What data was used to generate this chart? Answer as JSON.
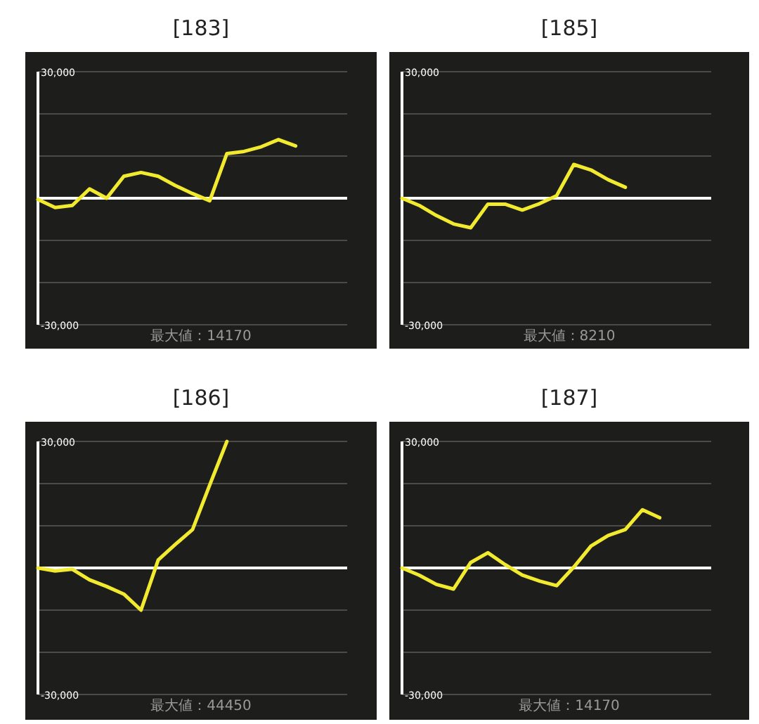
{
  "chart_data": [
    {
      "type": "line",
      "title": "[183]",
      "categories": [
        null,
        null,
        null,
        null,
        null,
        null,
        null,
        null,
        null,
        null,
        null,
        null,
        null,
        null,
        null,
        null,
        null,
        null,
        null
      ],
      "series": [
        {
          "color": "#f2ea2e",
          "values": [
            -300,
            -2200,
            -1700,
            2200,
            0,
            5200,
            6100,
            5200,
            3000,
            1100,
            -600,
            10600,
            11100,
            12200,
            13900,
            12400,
            null,
            null,
            null
          ]
        }
      ],
      "ylim": [
        -30000,
        30000
      ],
      "yticks": [
        {
          "value": -30000,
          "label": "-30,000"
        },
        {
          "value": -20000,
          "label": null
        },
        {
          "value": -10000,
          "label": null
        },
        {
          "value": 0,
          "label": null
        },
        {
          "value": 10000,
          "label": null
        },
        {
          "value": 20000,
          "label": null
        },
        {
          "value": 30000,
          "label": "30,000"
        }
      ],
      "grid": "y",
      "tick_labels": "y",
      "ref_lines": [
        {
          "axis": "y",
          "value": 0,
          "color": "#ffffff"
        }
      ],
      "annotations": [
        "最大値：14170"
      ]
    },
    {
      "type": "line",
      "title": "[185]",
      "categories": [
        null,
        null,
        null,
        null,
        null,
        null,
        null,
        null,
        null,
        null,
        null,
        null,
        null,
        null,
        null,
        null,
        null,
        null,
        null
      ],
      "series": [
        {
          "color": "#f2ea2e",
          "values": [
            0,
            -1700,
            -4100,
            -6100,
            -7000,
            -1400,
            -1400,
            -2800,
            -1300,
            600,
            8000,
            6700,
            4400,
            2600,
            null,
            null,
            null,
            null,
            null
          ]
        }
      ],
      "ylim": [
        -30000,
        30000
      ],
      "yticks": [
        {
          "value": -30000,
          "label": "-30,000"
        },
        {
          "value": -20000,
          "label": null
        },
        {
          "value": -10000,
          "label": null
        },
        {
          "value": 0,
          "label": null
        },
        {
          "value": 10000,
          "label": null
        },
        {
          "value": 20000,
          "label": null
        },
        {
          "value": 30000,
          "label": "30,000"
        }
      ],
      "grid": "y",
      "tick_labels": "y",
      "ref_lines": [
        {
          "axis": "y",
          "value": 0,
          "color": "#ffffff"
        }
      ],
      "annotations": [
        "最大値：8210"
      ]
    },
    {
      "type": "line",
      "title": "[186]",
      "categories": [
        null,
        null,
        null,
        null,
        null,
        null,
        null,
        null,
        null,
        null,
        null,
        null,
        null,
        null,
        null,
        null,
        null,
        null,
        null
      ],
      "series": [
        {
          "color": "#f2ea2e",
          "values": [
            0,
            -700,
            -300,
            -2800,
            -4400,
            -6200,
            -10000,
            1900,
            5600,
            9100,
            19700,
            30000,
            null,
            null,
            null,
            null,
            null,
            null,
            null
          ]
        }
      ],
      "ylim": [
        -30000,
        30000
      ],
      "yticks": [
        {
          "value": -30000,
          "label": "-30,000"
        },
        {
          "value": -20000,
          "label": null
        },
        {
          "value": -10000,
          "label": null
        },
        {
          "value": 0,
          "label": null
        },
        {
          "value": 10000,
          "label": null
        },
        {
          "value": 20000,
          "label": null
        },
        {
          "value": 30000,
          "label": "30,000"
        }
      ],
      "grid": "y",
      "tick_labels": "y",
      "ref_lines": [
        {
          "axis": "y",
          "value": 0,
          "color": "#ffffff"
        }
      ],
      "annotations": [
        "最大値：44450"
      ]
    },
    {
      "type": "line",
      "title": "[187]",
      "categories": [
        null,
        null,
        null,
        null,
        null,
        null,
        null,
        null,
        null,
        null,
        null,
        null,
        null,
        null,
        null,
        null,
        null,
        null,
        null
      ],
      "series": [
        {
          "color": "#f2ea2e",
          "values": [
            0,
            -1700,
            -3900,
            -5000,
            1300,
            3600,
            800,
            -1700,
            -3100,
            -4200,
            200,
            5200,
            7700,
            9100,
            13800,
            11900,
            null,
            null,
            null
          ]
        }
      ],
      "ylim": [
        -30000,
        30000
      ],
      "yticks": [
        {
          "value": -30000,
          "label": "-30,000"
        },
        {
          "value": -20000,
          "label": null
        },
        {
          "value": -10000,
          "label": null
        },
        {
          "value": 0,
          "label": null
        },
        {
          "value": 10000,
          "label": null
        },
        {
          "value": 20000,
          "label": null
        },
        {
          "value": 30000,
          "label": "30,000"
        }
      ],
      "grid": "y",
      "tick_labels": "y",
      "ref_lines": [
        {
          "axis": "y",
          "value": 0,
          "color": "#ffffff"
        }
      ],
      "annotations": [
        "最大値：14170"
      ]
    }
  ]
}
